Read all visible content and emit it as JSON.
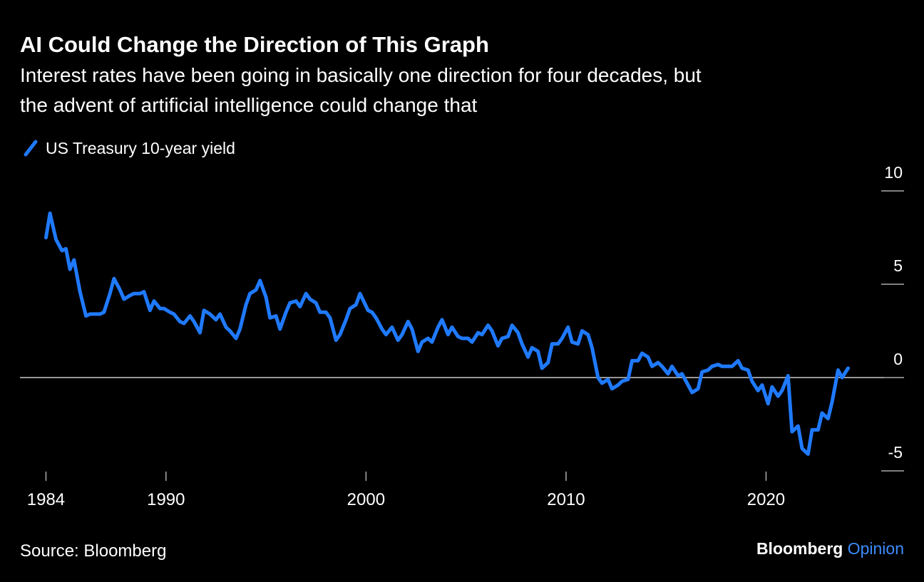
{
  "chart_data": {
    "type": "line",
    "title": "AI Could Change the Direction of This Graph",
    "subtitle": [
      "Interest rates have been going in basically one direction for four decades, but",
      "the advent of artificial intelligence could change that"
    ],
    "source": "Source: Bloomberg",
    "brand": "Bloomberg",
    "brand_sub": "Opinion",
    "x": [
      1984.0,
      1984.2,
      1984.5,
      1984.8,
      1985.0,
      1985.2,
      1985.4,
      1985.7,
      1986.0,
      1986.2,
      1986.5,
      1986.7,
      1986.9,
      1987.2,
      1987.4,
      1987.7,
      1987.9,
      1988.2,
      1988.4,
      1988.7,
      1988.9,
      1989.2,
      1989.4,
      1989.7,
      1989.9,
      1990.2,
      1990.4,
      1990.7,
      1990.9,
      1991.2,
      1991.4,
      1991.7,
      1991.9,
      1992.2,
      1992.5,
      1992.7,
      1993.0,
      1993.2,
      1993.5,
      1993.7,
      1994.0,
      1994.2,
      1994.5,
      1994.7,
      1995.0,
      1995.2,
      1995.5,
      1995.7,
      1996.0,
      1996.2,
      1996.5,
      1996.7,
      1997.0,
      1997.2,
      1997.5,
      1997.7,
      1998.0,
      1998.2,
      1998.5,
      1998.7,
      1999.0,
      1999.2,
      1999.5,
      1999.7,
      2000.1,
      2000.3,
      2000.5,
      2000.8,
      2001.0,
      2001.3,
      2001.6,
      2001.8,
      2002.1,
      2002.3,
      2002.6,
      2002.8,
      2003.1,
      2003.3,
      2003.6,
      2003.8,
      2004.1,
      2004.3,
      2004.6,
      2004.8,
      2005.1,
      2005.3,
      2005.6,
      2005.8,
      2006.1,
      2006.3,
      2006.6,
      2006.8,
      2007.1,
      2007.3,
      2007.6,
      2007.8,
      2008.1,
      2008.3,
      2008.6,
      2008.8,
      2009.1,
      2009.3,
      2009.6,
      2009.8,
      2010.1,
      2010.3,
      2010.6,
      2010.8,
      2011.1,
      2011.3,
      2011.6,
      2011.8,
      2012.1,
      2012.3,
      2012.6,
      2012.8,
      2013.1,
      2013.3,
      2013.6,
      2013.8,
      2014.1,
      2014.3,
      2014.6,
      2014.8,
      2015.1,
      2015.3,
      2015.6,
      2015.8,
      2016.1,
      2016.3,
      2016.6,
      2016.8,
      2017.1,
      2017.3,
      2017.6,
      2017.8,
      2018.1,
      2018.3,
      2018.6,
      2018.8,
      2019.1,
      2019.3,
      2019.6,
      2019.8,
      2020.1,
      2020.3,
      2020.6,
      2020.8,
      2021.1,
      2021.3,
      2021.6,
      2021.8,
      2022.1,
      2022.3,
      2022.6,
      2022.8,
      2023.1,
      2023.3,
      2023.6,
      2023.8,
      2024.1
    ],
    "series": [
      {
        "name": "US Treasury 10-year yield",
        "color": "#1f7aff",
        "values": [
          7.5,
          8.8,
          7.4,
          6.8,
          6.9,
          5.8,
          6.3,
          4.6,
          3.3,
          3.4,
          3.4,
          3.4,
          3.5,
          4.5,
          5.3,
          4.7,
          4.2,
          4.4,
          4.5,
          4.5,
          4.6,
          3.6,
          4.1,
          3.7,
          3.7,
          3.5,
          3.4,
          3.0,
          2.9,
          3.3,
          3.0,
          2.4,
          3.6,
          3.4,
          3.1,
          3.4,
          2.7,
          2.5,
          2.1,
          2.6,
          3.9,
          4.5,
          4.7,
          5.2,
          4.3,
          3.2,
          3.3,
          2.6,
          3.5,
          4.0,
          4.1,
          3.8,
          4.5,
          4.2,
          4.0,
          3.5,
          3.5,
          3.2,
          2.0,
          2.3,
          3.1,
          3.7,
          3.9,
          4.5,
          3.6,
          3.5,
          3.2,
          2.6,
          2.3,
          2.7,
          2.0,
          2.3,
          3.0,
          2.6,
          1.4,
          1.9,
          2.1,
          1.9,
          2.7,
          3.1,
          2.3,
          2.7,
          2.2,
          2.1,
          2.1,
          1.9,
          2.4,
          2.3,
          2.8,
          2.5,
          1.7,
          2.1,
          2.2,
          2.8,
          2.4,
          1.8,
          1.1,
          1.6,
          1.4,
          0.5,
          0.8,
          1.8,
          1.8,
          2.1,
          2.7,
          1.9,
          1.8,
          2.5,
          2.3,
          1.6,
          0.0,
          -0.3,
          -0.1,
          -0.6,
          -0.4,
          -0.2,
          -0.1,
          0.9,
          0.9,
          1.3,
          1.1,
          0.6,
          0.8,
          0.6,
          0.2,
          0.6,
          0.1,
          0.2,
          -0.4,
          -0.8,
          -0.6,
          0.3,
          0.4,
          0.6,
          0.7,
          0.6,
          0.6,
          0.6,
          0.9,
          0.5,
          0.4,
          -0.2,
          -0.7,
          -0.4,
          -1.4,
          -0.5,
          -1.0,
          -0.7,
          0.1,
          -2.9,
          -2.6,
          -3.8,
          -4.1,
          -2.8,
          -2.8,
          -1.9,
          -2.2,
          -1.3,
          0.4,
          0.0,
          0.5
        ]
      }
    ],
    "xlim": [
      1982.7,
      2025.9
    ],
    "xticks": [
      1984,
      1990,
      2000,
      2010,
      2020
    ],
    "ylim": [
      -5,
      10
    ],
    "yticks": [
      -5,
      0,
      5,
      10
    ],
    "grid": false,
    "legend": "top-left"
  }
}
